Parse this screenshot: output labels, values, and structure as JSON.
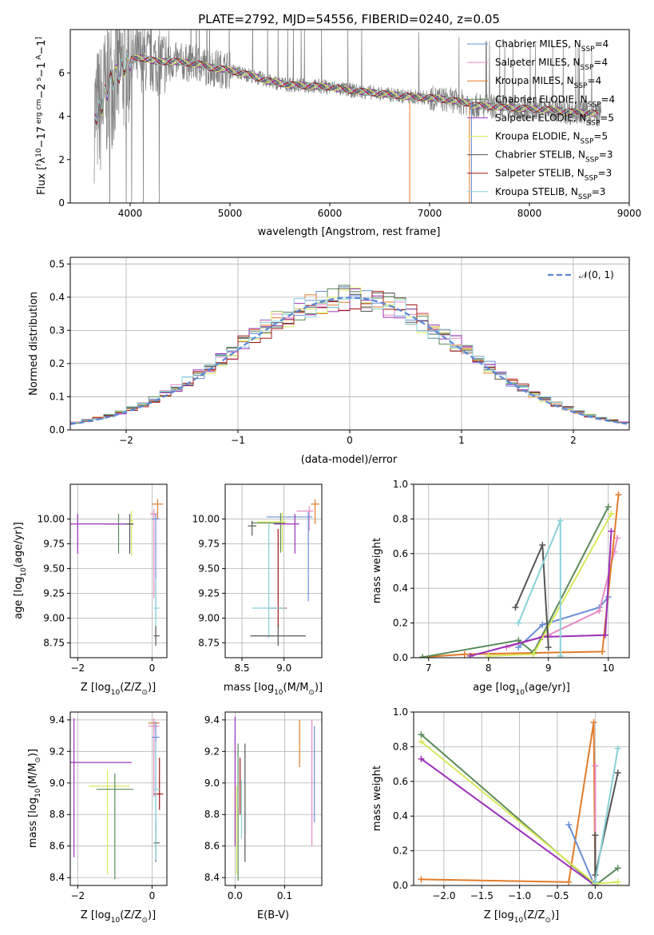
{
  "colors": {
    "Chabrier MILES": "#6a8fd8",
    "Salpeter MILES": "#e68ac4",
    "Kroupa MILES": "#e07b2a",
    "Chabrier ELODIE": "#5a8a5a",
    "Salpeter ELODIE": "#9b30b8",
    "Kroupa ELODIE": "#d8e85a",
    "Chabrier STELIB": "#555555",
    "Salpeter STELIB": "#a01818",
    "Kroupa STELIB": "#88d0d8"
  },
  "chart_data": [
    {
      "id": "spectrum",
      "type": "line",
      "title": "PLATE=2792, MJD=54556, FIBERID=0240, z=0.05",
      "xlabel": "wavelength [Angstrom, rest frame]",
      "ylabel_parts": [
        "Flux [",
        "f",
        "λ",
        "10",
        "−17",
        " erg cm",
        "−2",
        " s",
        "−1",
        " A",
        "−1",
        "]"
      ],
      "xlim": [
        3400,
        9000
      ],
      "ylim": [
        0,
        8
      ],
      "xticks": [
        4000,
        5000,
        6000,
        7000,
        8000,
        9000
      ],
      "yticks": [
        0,
        2,
        4,
        6
      ],
      "grid": false,
      "legend_position": "upper-right",
      "legend": [
        {
          "base": "Chabrier MILES, N",
          "sub": "SSP",
          "tail": "=4",
          "series": "Chabrier MILES"
        },
        {
          "base": "Salpeter MILES, N",
          "sub": "SSP",
          "tail": "=4",
          "series": "Salpeter MILES"
        },
        {
          "base": "Kroupa MILES, N",
          "sub": "SSP",
          "tail": "=4",
          "series": "Kroupa MILES"
        },
        {
          "base": "Chabrier ELODIE, N",
          "sub": "SSP",
          "tail": "=4",
          "series": "Chabrier ELODIE"
        },
        {
          "base": "Salpeter ELODIE, N",
          "sub": "SSP",
          "tail": "=5",
          "series": "Salpeter ELODIE"
        },
        {
          "base": "Kroupa ELODIE, N",
          "sub": "SSP",
          "tail": "=5",
          "series": "Kroupa ELODIE"
        },
        {
          "base": "Chabrier STELIB, N",
          "sub": "SSP",
          "tail": "=3",
          "series": "Chabrier STELIB"
        },
        {
          "base": "Salpeter STELIB, N",
          "sub": "SSP",
          "tail": "=3",
          "series": "Salpeter STELIB"
        },
        {
          "base": "Kroupa STELIB, N",
          "sub": "SSP",
          "tail": "=3",
          "series": "Kroupa STELIB"
        }
      ],
      "observed_color": "#808080",
      "model_continuum": {
        "x": [
          3650,
          3700,
          3800,
          3900,
          4000,
          4100,
          4200,
          4300,
          4400,
          4500,
          4600,
          4700,
          4800,
          4900,
          5000,
          5200,
          5400,
          5600,
          5800,
          6000,
          6200,
          6400,
          6600,
          6800,
          7000,
          7200,
          7400,
          7450,
          7600,
          7800,
          8000,
          8200,
          8400,
          8600,
          8700
        ],
        "y": [
          4.1,
          4.3,
          5.6,
          6.1,
          6.6,
          6.7,
          6.6,
          6.5,
          6.55,
          6.5,
          6.45,
          6.4,
          6.25,
          6.2,
          6.1,
          5.9,
          5.6,
          5.45,
          5.4,
          5.35,
          5.2,
          5.1,
          5.0,
          4.9,
          4.85,
          4.75,
          4.6,
          4.5,
          4.45,
          4.4,
          4.35,
          4.3,
          4.2,
          4.15,
          4.1
        ]
      },
      "model_drops": [
        {
          "series": "Kroupa MILES",
          "x": 6800
        },
        {
          "series": "Kroupa MILES",
          "x": 7400
        },
        {
          "series": "Chabrier MILES",
          "x": 7420
        }
      ]
    },
    {
      "id": "residuals",
      "type": "histogram",
      "xlabel": "(data-model)/error",
      "ylabel": "Normed distribution",
      "xlim": [
        -2.5,
        2.5
      ],
      "ylim": [
        0,
        0.52
      ],
      "xticks": [
        -2,
        -1,
        0,
        1,
        2
      ],
      "yticks": [
        0.0,
        0.1,
        0.2,
        0.3,
        0.4,
        0.5
      ],
      "grid": true,
      "legend_position": "upper-right",
      "reference_curve": {
        "label": "𝒩(0, 1)",
        "mean": 0,
        "sigma": 1,
        "color": "#5b87d6"
      },
      "bin_edges_start": -2.5,
      "bin_width": 0.1
    },
    {
      "id": "age-vs-Z",
      "type": "errorbar",
      "xlabel_parts": [
        "Z [log",
        "10",
        "(Z/Z",
        "⊙",
        ")]"
      ],
      "ylabel_parts": [
        "age  [log",
        "10",
        "(age/yr)]"
      ],
      "xlim": [
        -2.2,
        0.4
      ],
      "ylim": [
        8.6,
        10.35
      ],
      "xticks": [
        -2,
        0
      ],
      "yticks": [
        8.75,
        9.0,
        9.25,
        9.5,
        9.75,
        10.0
      ],
      "grid": true,
      "points": [
        {
          "series": "Kroupa MILES",
          "x": 0.15,
          "xerr": [
            0.15,
            0.15
          ],
          "y": 10.15,
          "yerr": [
            0.15,
            0.05
          ]
        },
        {
          "series": "Salpeter MILES",
          "x": 0.05,
          "xerr": [
            0.1,
            0.1
          ],
          "y": 10.05,
          "yerr": [
            0.85,
            0.05
          ]
        },
        {
          "series": "Chabrier MILES",
          "x": 0.1,
          "xerr": [
            0.1,
            0.1
          ],
          "y": 10.0,
          "yerr": [
            1.0,
            0.05
          ]
        },
        {
          "series": "Kroupa ELODIE",
          "x": -0.55,
          "xerr": [
            0.05,
            0.05
          ],
          "y": 9.98,
          "yerr": [
            0.35,
            0.1
          ]
        },
        {
          "series": "Chabrier ELODIE",
          "x": -0.9,
          "xerr": [
            0.4,
            0.4
          ],
          "y": 9.95,
          "yerr": [
            0.3,
            0.1
          ]
        },
        {
          "series": "Salpeter ELODIE",
          "x": -2.0,
          "xerr": [
            0.2,
            1.5
          ],
          "y": 9.95,
          "yerr": [
            0.3,
            0.1
          ]
        },
        {
          "series": "Chabrier STELIB",
          "x": -0.6,
          "xerr": [
            0.1,
            0.1
          ],
          "y": 9.95,
          "yerr": [
            0.3,
            0.1
          ]
        },
        {
          "series": "Kroupa STELIB",
          "x": 0.1,
          "xerr": [
            0.05,
            0.1
          ],
          "y": 9.1,
          "yerr": [
            0.25,
            0.3
          ]
        },
        {
          "series": "Chabrier STELIB",
          "x": 0.1,
          "xerr": [
            0.05,
            0.1
          ],
          "y": 8.82,
          "yerr": [
            0.1,
            0.1
          ]
        }
      ]
    },
    {
      "id": "age-vs-mass",
      "type": "errorbar",
      "xlabel_parts": [
        "mass [log",
        "10",
        "(M/M",
        "⊙",
        ")]"
      ],
      "xlim": [
        8.3,
        9.45
      ],
      "ylim": [
        8.6,
        10.35
      ],
      "xticks": [
        8.5,
        9.0
      ],
      "yticks": [
        8.75,
        9.0,
        9.25,
        9.5,
        9.75,
        10.0
      ],
      "grid": true,
      "points": [
        {
          "series": "Kroupa MILES",
          "x": 9.37,
          "xerr": [
            0.05,
            0.05
          ],
          "y": 10.15,
          "yerr": [
            0.2,
            0.05
          ]
        },
        {
          "series": "Salpeter MILES",
          "x": 9.3,
          "xerr": [
            0.15,
            0.05
          ],
          "y": 10.08,
          "yerr": [
            0.2,
            0.05
          ]
        },
        {
          "series": "Chabrier MILES",
          "x": 9.29,
          "xerr": [
            0.5,
            0.05
          ],
          "y": 10.02,
          "yerr": [
            0.85,
            0.05
          ]
        },
        {
          "series": "Chabrier ELODIE",
          "x": 8.96,
          "xerr": [
            0.35,
            0.05
          ],
          "y": 9.96,
          "yerr": [
            0.3,
            0.1
          ]
        },
        {
          "series": "Kroupa ELODIE",
          "x": 8.98,
          "xerr": [
            0.3,
            0.05
          ],
          "y": 9.97,
          "yerr": [
            0.3,
            0.1
          ]
        },
        {
          "series": "Salpeter ELODIE",
          "x": 9.13,
          "xerr": [
            0.25,
            0.05
          ],
          "y": 9.95,
          "yerr": [
            0.3,
            0.1
          ]
        },
        {
          "series": "Chabrier STELIB",
          "x": 8.62,
          "xerr": [
            0.05,
            0.05
          ],
          "y": 9.93,
          "yerr": [
            0.1,
            0.05
          ]
        },
        {
          "series": "Salpeter STELIB",
          "x": 8.93,
          "xerr": [
            0.1,
            0.1
          ],
          "y": 9.1,
          "yerr": [
            0.2,
            0.8
          ]
        },
        {
          "series": "Kroupa STELIB",
          "x": 8.82,
          "xerr": [
            0.2,
            0.2
          ],
          "y": 9.1,
          "yerr": [
            0.3,
            0.85
          ]
        },
        {
          "series": "Chabrier STELIB",
          "x": 8.93,
          "xerr": [
            0.33,
            0.33
          ],
          "y": 8.82,
          "yerr": [
            0.1,
            0.1
          ]
        }
      ]
    },
    {
      "id": "weight-vs-age",
      "type": "line",
      "xlabel_parts": [
        "age  [log",
        "10",
        "(age/yr)]"
      ],
      "ylabel": "mass weight",
      "xlim": [
        6.75,
        10.35
      ],
      "ylim": [
        0,
        1.0
      ],
      "xticks": [
        7,
        8,
        9,
        10
      ],
      "yticks": [
        0.0,
        0.2,
        0.4,
        0.6,
        0.8,
        1.0
      ],
      "grid": true,
      "series": [
        {
          "name": "Chabrier MILES",
          "x": [
            8.5,
            8.9,
            9.85,
            10.0
          ],
          "y": [
            0.06,
            0.19,
            0.29,
            0.35
          ]
        },
        {
          "name": "Salpeter MILES",
          "x": [
            8.3,
            9.0,
            9.85,
            10.1,
            10.15
          ],
          "y": [
            0.06,
            0.13,
            0.27,
            0.61,
            0.69
          ]
        },
        {
          "name": "Kroupa MILES",
          "x": [
            6.9,
            7.6,
            9.9,
            10.17
          ],
          "y": [
            0.003,
            0.02,
            0.035,
            0.94
          ]
        },
        {
          "name": "Chabrier ELODIE",
          "x": [
            6.9,
            8.5,
            8.75,
            10.0
          ],
          "y": [
            0.003,
            0.1,
            0.03,
            0.87
          ]
        },
        {
          "name": "Salpeter ELODIE",
          "x": [
            7.7,
            8.9,
            9.95,
            10.05
          ],
          "y": [
            0.01,
            0.12,
            0.13,
            0.73
          ]
        },
        {
          "name": "Kroupa ELODIE",
          "x": [
            8.0,
            8.75,
            10.05
          ],
          "y": [
            0.01,
            0.02,
            0.83
          ]
        },
        {
          "name": "Chabrier STELIB",
          "x": [
            8.45,
            8.9,
            9.0
          ],
          "y": [
            0.29,
            0.65,
            0.06
          ]
        },
        {
          "name": "Kroupa STELIB",
          "x": [
            8.5,
            9.2,
            9.2
          ],
          "y": [
            0.2,
            0.79,
            0.01
          ]
        }
      ]
    },
    {
      "id": "mass-vs-Z",
      "type": "errorbar",
      "xlabel_parts": [
        "Z [log",
        "10",
        "(Z/Z",
        "⊙",
        ")]"
      ],
      "ylabel_parts": [
        "mass [log",
        "10",
        "(M/M",
        "⊙",
        ")]"
      ],
      "xlim": [
        -2.2,
        0.4
      ],
      "ylim": [
        8.35,
        9.45
      ],
      "xticks": [
        -2,
        0
      ],
      "yticks": [
        8.4,
        8.6,
        8.8,
        9.0,
        9.2,
        9.4
      ],
      "grid": true,
      "points": [
        {
          "series": "Kroupa MILES",
          "x": 0.05,
          "xerr": [
            0.15,
            0.15
          ],
          "y": 9.38,
          "yerr": [
            0.05,
            0.02
          ]
        },
        {
          "series": "Salpeter MILES",
          "x": 0.05,
          "xerr": [
            0.15,
            0.15
          ],
          "y": 9.36,
          "yerr": [
            0.45,
            0.05
          ]
        },
        {
          "series": "Chabrier MILES",
          "x": 0.1,
          "xerr": [
            0.1,
            0.1
          ],
          "y": 9.29,
          "yerr": [
            0.6,
            0.1
          ]
        },
        {
          "series": "Salpeter ELODIE",
          "x": -2.1,
          "xerr": [
            0.1,
            1.55
          ],
          "y": 9.13,
          "yerr": [
            0.6,
            0.28
          ]
        },
        {
          "series": "Kroupa ELODIE",
          "x": -1.2,
          "xerr": [
            0.5,
            0.6
          ],
          "y": 8.98,
          "yerr": [
            0.56,
            0.1
          ]
        },
        {
          "series": "Chabrier ELODIE",
          "x": -1.0,
          "xerr": [
            0.5,
            0.5
          ],
          "y": 8.96,
          "yerr": [
            0.57,
            0.1
          ]
        },
        {
          "series": "Salpeter STELIB",
          "x": 0.2,
          "xerr": [
            0.15,
            0.1
          ],
          "y": 8.93,
          "yerr": [
            0.1,
            0.23
          ]
        },
        {
          "series": "Chabrier STELIB",
          "x": 0.1,
          "xerr": [
            0.05,
            0.1
          ],
          "y": 8.62,
          "yerr": [
            0.12,
            0.13
          ]
        },
        {
          "series": "Kroupa STELIB",
          "x": 0.1,
          "xerr": [
            0.05,
            0.1
          ],
          "y": 8.96,
          "yerr": [
            0.45,
            0.3
          ]
        }
      ]
    },
    {
      "id": "mass-vs-EBV",
      "type": "errorbar",
      "xlabel": "E(B-V)",
      "xlim": [
        -0.02,
        0.175
      ],
      "ylim": [
        8.35,
        9.45
      ],
      "xticks": [
        0.0,
        0.1
      ],
      "yticks": [
        8.4,
        8.6,
        8.8,
        9.0,
        9.2,
        9.4
      ],
      "grid": true,
      "points": [
        {
          "series": "Salpeter ELODIE",
          "x": 0.0,
          "yerr_range": [
            8.6,
            9.42
          ]
        },
        {
          "series": "Kroupa ELODIE",
          "x": 0.003,
          "yerr_range": [
            8.42,
            8.98
          ]
        },
        {
          "series": "Chabrier ELODIE",
          "x": 0.006,
          "yerr_range": [
            8.38,
            9.25
          ]
        },
        {
          "series": "Salpeter STELIB",
          "x": 0.01,
          "yerr_range": [
            8.8,
            9.16
          ]
        },
        {
          "series": "Kroupa STELIB",
          "x": 0.013,
          "yerr_range": [
            8.65,
            9.02
          ]
        },
        {
          "series": "Chabrier STELIB",
          "x": 0.02,
          "yerr_range": [
            8.5,
            9.25
          ]
        },
        {
          "series": "Kroupa MILES",
          "x": 0.13,
          "yerr_range": [
            9.1,
            9.4
          ]
        },
        {
          "series": "Salpeter MILES",
          "x": 0.155,
          "yerr_range": [
            8.6,
            9.4
          ]
        },
        {
          "series": "Chabrier MILES",
          "x": 0.16,
          "yerr_range": [
            8.75,
            9.36
          ]
        }
      ]
    },
    {
      "id": "weight-vs-Z",
      "type": "line",
      "xlabel_parts": [
        "Z [log",
        "10",
        "(Z/Z",
        "⊙",
        ")]"
      ],
      "ylabel": "mass weight",
      "xlim": [
        -2.4,
        0.45
      ],
      "ylim": [
        0,
        1.0
      ],
      "xticks": [
        -2.0,
        -1.5,
        -1.0,
        -0.5,
        0.0
      ],
      "grid": true,
      "yticks": [
        0.0,
        0.2,
        0.4,
        0.6,
        0.8,
        1.0
      ],
      "series": [
        {
          "name": "Kroupa MILES",
          "x": [
            -2.3,
            -0.35,
            -0.02,
            0.0
          ],
          "y": [
            0.035,
            0.02,
            0.94,
            0.0
          ]
        },
        {
          "name": "Salpeter MILES",
          "x": [
            0.0,
            0.0
          ],
          "y": [
            0.69,
            0.0
          ]
        },
        {
          "name": "Chabrier MILES",
          "x": [
            -0.35,
            -0.02,
            0.0
          ],
          "y": [
            0.35,
            0.01,
            0.0
          ]
        },
        {
          "name": "Chabrier ELODIE",
          "x": [
            -2.3,
            0.0,
            0.3
          ],
          "y": [
            0.87,
            0.0,
            0.1
          ]
        },
        {
          "name": "Salpeter ELODIE",
          "x": [
            -2.3,
            0.0
          ],
          "y": [
            0.73,
            0.0
          ]
        },
        {
          "name": "Kroupa ELODIE",
          "x": [
            -2.3,
            0.0,
            0.3
          ],
          "y": [
            0.83,
            0.01,
            0.02
          ]
        },
        {
          "name": "Chabrier STELIB",
          "x": [
            0.0,
            0.0,
            0.3
          ],
          "y": [
            0.29,
            0.06,
            0.65
          ]
        },
        {
          "name": "Kroupa STELIB",
          "x": [
            0.0,
            0.3
          ],
          "y": [
            0.02,
            0.79
          ]
        }
      ]
    }
  ]
}
